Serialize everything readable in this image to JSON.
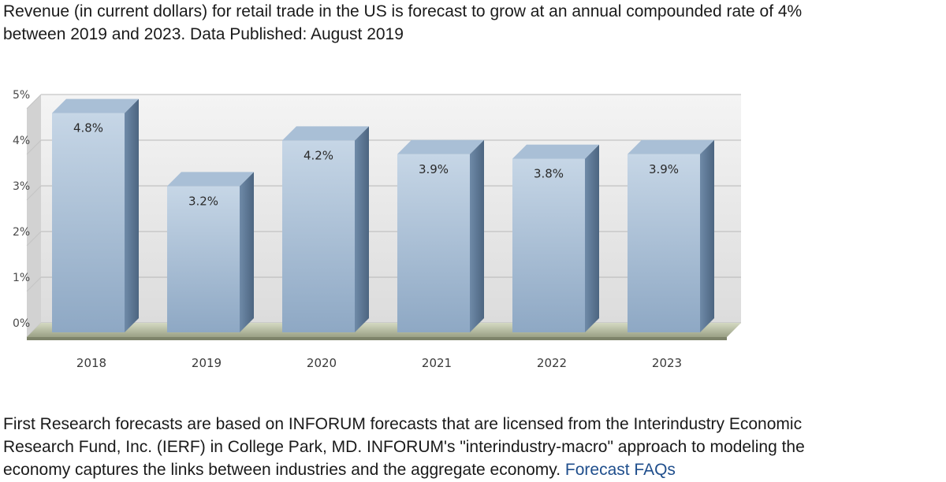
{
  "intro": {
    "line1": "Revenue (in current dollars) for retail trade in the US is forecast to grow at an annual compounded rate of 4%",
    "line2": "between 2019 and 2023. Data Published: August 2019"
  },
  "footer": {
    "line1": "First Research forecasts are based on INFORUM forecasts that are licensed from the Interindustry Economic",
    "line2": "Research Fund, Inc. (IERF) in College Park, MD. INFORUM's \"interindustry-macro\" approach to modeling the",
    "line3_text": "economy captures the links between industries and the aggregate economy.",
    "link_label": "Forecast FAQs"
  },
  "colors": {
    "link": "#1f4e8c",
    "bar_front_top": "#c6d6e6",
    "bar_front_bottom": "#8ea8c4",
    "bar_side": "#5e7a98",
    "bar_top": "#a9bfd6",
    "floor": "#c9cfb6",
    "wall": "#e6e6e6"
  },
  "chart_data": {
    "type": "bar",
    "categories": [
      "2018",
      "2019",
      "2020",
      "2021",
      "2022",
      "2023"
    ],
    "values": [
      4.8,
      3.2,
      4.2,
      3.9,
      3.8,
      3.9
    ],
    "data_labels": [
      "4.8%",
      "3.2%",
      "4.2%",
      "3.9%",
      "3.8%",
      "3.9%"
    ],
    "y_ticks": [
      "0%",
      "1%",
      "2%",
      "3%",
      "4%",
      "5%"
    ],
    "ylim": [
      0,
      5
    ],
    "grid": true,
    "style": "3d-column"
  }
}
